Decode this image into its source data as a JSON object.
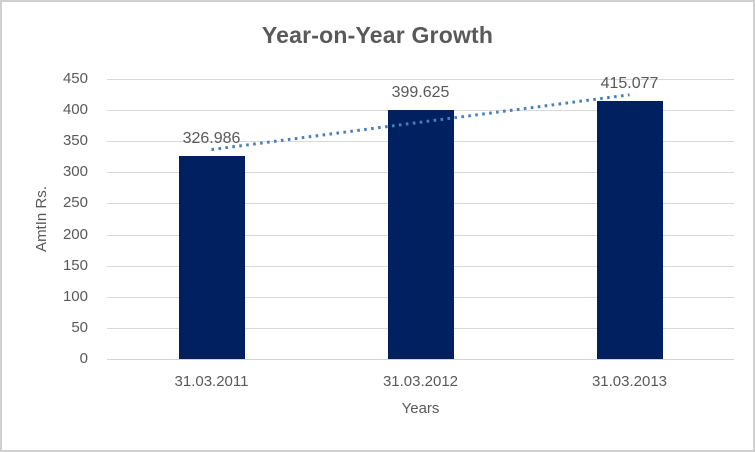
{
  "chart_data": {
    "type": "bar",
    "title": "Year-on-Year Growth",
    "xlabel": "Years",
    "ylabel": "AmtIn Rs.",
    "categories": [
      "31.03.2011",
      "31.03.2012",
      "31.03.2013"
    ],
    "values": [
      326.986,
      399.625,
      415.077
    ],
    "data_labels": [
      "326.986",
      "399.625",
      "415.077"
    ],
    "ylim": [
      0,
      450
    ],
    "ytick_step": 50,
    "ytick_labels": [
      "0",
      "50",
      "100",
      "150",
      "200",
      "250",
      "300",
      "350",
      "400",
      "450"
    ],
    "grid": true,
    "legend": false,
    "trendline": {
      "type": "linear",
      "style": "dotted",
      "span": "first-to-last-category"
    },
    "colors": {
      "bar": "#002060",
      "trendline": "#4A7EBB",
      "gridline": "#D9D9D9",
      "axis_line": "#D3D3D3",
      "text": "#595959",
      "title_text": "#595959",
      "border": "#D0D0D0",
      "background": "#FFFFFF"
    }
  }
}
